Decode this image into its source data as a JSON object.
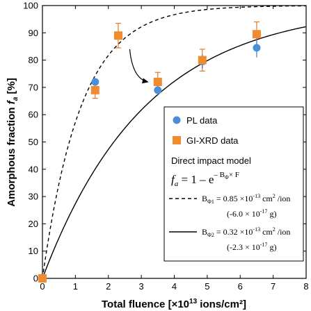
{
  "chart_data": {
    "type": "scatter",
    "xlabel": "Total fluence [×10",
    "xlabel_sup": "13",
    "xlabel_tail": " ions/cm²]",
    "ylabel": "Amorphous fraction ",
    "ylabel_italic": "f",
    "ylabel_sub": "a",
    "ylabel_tail": " [%]",
    "xlim": [
      0,
      8
    ],
    "ylim": [
      0,
      100
    ],
    "x_ticks": [
      "0",
      "1",
      "2",
      "3",
      "4",
      "5",
      "6",
      "7",
      "8"
    ],
    "y_ticks": [
      "0",
      "10",
      "20",
      "30",
      "40",
      "50",
      "60",
      "70",
      "80",
      "90",
      "100"
    ],
    "colors": {
      "pl": "#4a90d9",
      "xrd": "#f28a30",
      "error_blue": "#3a78c2",
      "error_orange": "#e07a28"
    },
    "series": [
      {
        "name": "PL data",
        "marker": "circle",
        "points": [
          {
            "x": 0,
            "y": 0,
            "err": 0
          },
          {
            "x": 1.6,
            "y": 72,
            "err": 0
          },
          {
            "x": 2.3,
            "y": 89,
            "err": 0
          },
          {
            "x": 3.5,
            "y": 69,
            "err": 2
          },
          {
            "x": 4.85,
            "y": 79.5,
            "err": 2.5
          },
          {
            "x": 6.5,
            "y": 84.5,
            "err": 3.5
          }
        ]
      },
      {
        "name": "GI-XRD data",
        "marker": "square",
        "points": [
          {
            "x": 0,
            "y": 0,
            "err": 0
          },
          {
            "x": 1.6,
            "y": 69,
            "err": 3
          },
          {
            "x": 2.3,
            "y": 89,
            "err": 4.5
          },
          {
            "x": 3.5,
            "y": 72,
            "err": 3.5
          },
          {
            "x": 4.85,
            "y": 80,
            "err": 4
          },
          {
            "x": 6.5,
            "y": 89.5,
            "err": 4.5
          }
        ]
      }
    ],
    "model": {
      "title": "Direct impact model",
      "eq_f": "f",
      "eq_a": "a",
      "eq_main": " = 1 – e",
      "eq_exp": "– B",
      "eq_exp_sub": "Φ",
      "eq_exp_tail": "× F",
      "curves": [
        {
          "style": "dashed",
          "B": 0.85,
          "b_label": "B",
          "b_sub": "Φ1",
          "value": " = 0.85 ×10",
          "exp": "-13",
          "unit": " cm",
          "unit_sup": "2",
          "unit_tail": " /ion",
          "note": "(-6.0 × 10",
          "note_exp": "-17",
          "note_tail": " g)"
        },
        {
          "style": "solid",
          "B": 0.32,
          "b_label": "B",
          "b_sub": "Φ2",
          "value": " = 0.32 ×10",
          "exp": "-13",
          "unit": " cm",
          "unit_sup": "2",
          "unit_tail": " /ion",
          "note": "(-2.3 × 10",
          "note_exp": "-17",
          "note_tail": " g)"
        }
      ]
    },
    "annotation": {
      "type": "arrow",
      "from": [
        2.65,
        84
      ],
      "to": [
        3.2,
        72
      ]
    }
  }
}
